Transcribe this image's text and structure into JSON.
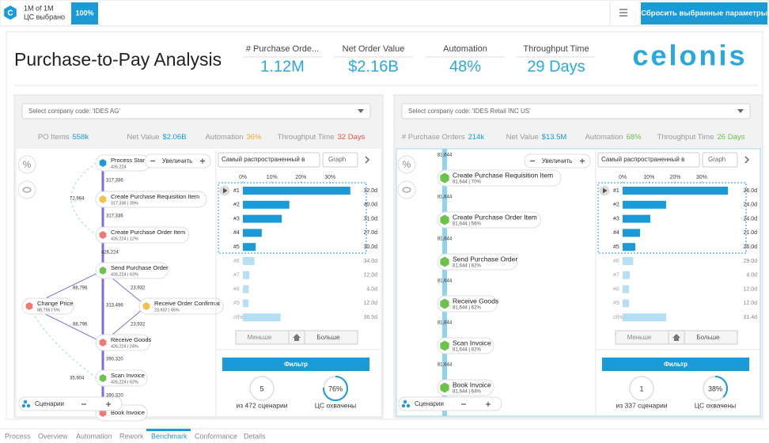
{
  "topbar": {
    "count": "1M of 1M",
    "selected": "ЦС выбрано",
    "percent": "100%",
    "reset": "Сбросить выбранные параметры"
  },
  "header": {
    "title": "Purchase-to-Pay Analysis",
    "logo": "celonis",
    "kpis": [
      {
        "label": "# Purchase Orde...",
        "value": "1.12M"
      },
      {
        "label": "Net Order Value",
        "value": "$2.16B"
      },
      {
        "label": "Automation",
        "value": "48%"
      },
      {
        "label": "Throughput Time",
        "value": "29 Days"
      }
    ]
  },
  "panels": [
    {
      "company_select": "Select company code: 'IDES AG'",
      "stats": [
        {
          "label": "PO Items",
          "value": "558k",
          "color": "#1a9bd7"
        },
        {
          "label": "Net Value",
          "value": "$2.06B",
          "color": "#1a9bd7"
        },
        {
          "label": "Automation",
          "value": "36%",
          "color": "#f0a830"
        },
        {
          "label": "Throughput Time",
          "value": "32 Days",
          "color": "#e8574a"
        }
      ],
      "zoom": "Увеличить",
      "scenarios": "Сценарии",
      "graph": {
        "nodes": [
          {
            "label": "Process Start",
            "sub": "426,224",
            "color": "#1a9bd7"
          },
          {
            "label": "Create Purchase Requisition Item",
            "sub": "317,336 | 39%",
            "color": "#f5c04a"
          },
          {
            "label": "Create Purchase Order Item",
            "sub": "426,224 | 12%",
            "color": "#f07a73"
          },
          {
            "label": "Send Purchase Order",
            "sub": "426,224 | 63%",
            "color": "#6cc24a"
          },
          {
            "label": "Change Price",
            "sub": "88,796 | 5%",
            "color": "#f07a73"
          },
          {
            "label": "Receive Order Confirmat",
            "sub": "23,932 | 45%",
            "color": "#f5c04a"
          },
          {
            "label": "Receive Goods",
            "sub": "426,224 | 24%",
            "color": "#f07a73"
          },
          {
            "label": "Scan Invoice",
            "sub": "426,224 | 62%",
            "color": "#6cc24a"
          },
          {
            "label": "Book Invoice",
            "color": "#f07a73"
          }
        ],
        "edges": [
          "317,336",
          "72,984",
          "317,336",
          "426,224",
          "88,796",
          "23,932",
          "313,496",
          "88,796",
          "23,932",
          "390,320",
          "35,904",
          "390,320"
        ]
      },
      "variants": {
        "sort": "Самый распространенный в",
        "view": "Graph",
        "xticks": [
          {
            "value": 0,
            "label": "0%"
          },
          {
            "value": 10,
            "label": "10%"
          },
          {
            "value": 20,
            "label": "20%"
          },
          {
            "value": 30,
            "label": "30%"
          }
        ],
        "rows": [
          {
            "label": "#1",
            "share": 37,
            "duration": "32.0d"
          },
          {
            "label": "#2",
            "share": 16,
            "duration": "40.0d"
          },
          {
            "label": "#3",
            "share": 13.4,
            "duration": "31.0d"
          },
          {
            "label": "#4",
            "share": 6.5,
            "duration": "27.0d"
          },
          {
            "label": "#5",
            "share": 4.4,
            "duration": "30.0d"
          },
          {
            "label": "#6",
            "share": 4,
            "duration": "34.0d"
          },
          {
            "label": "#7",
            "share": 2.2,
            "duration": "12.0d"
          },
          {
            "label": "#8",
            "share": 2,
            "duration": "4.0d"
          },
          {
            "label": "#9",
            "share": 2,
            "duration": "12.0d"
          },
          {
            "label": "others",
            "share": 13,
            "duration": "36.5d"
          }
        ]
      },
      "less": "Меньше",
      "more": "Больше",
      "filter": "Фильтр",
      "variant_count": "5",
      "variant_text": "из 472 сценарии",
      "coverage": {
        "value": 76,
        "label": "76%"
      },
      "coverage_text": "ЦС охвачены"
    },
    {
      "company_select": "Select company code: 'IDES Retail INC US'",
      "stats": [
        {
          "label": "# Purchase Orders",
          "value": "214k",
          "color": "#1a9bd7"
        },
        {
          "label": "Net Value",
          "value": "$13.5M",
          "color": "#1a9bd7"
        },
        {
          "label": "Automation",
          "value": "68%",
          "color": "#6cc24a"
        },
        {
          "label": "Throughput Time",
          "value": "26 Days",
          "color": "#6cc24a"
        }
      ],
      "zoom": "Увеличить",
      "scenarios": "Сценарии",
      "graph": {
        "nodes": [
          {
            "label": "Create Purchase Requisition Item",
            "sub": "81,644 | 70%",
            "color": "#6cc24a"
          },
          {
            "label": "Create Purchase Order Item",
            "sub": "81,644 | 56%",
            "color": "#6cc24a"
          },
          {
            "label": "Send Purchase Order",
            "sub": "81,644 | 82%",
            "color": "#6cc24a"
          },
          {
            "label": "Receive Goods",
            "sub": "81,644 | 62%",
            "color": "#6cc24a"
          },
          {
            "label": "Scan Invoice",
            "sub": "81,644 | 82%",
            "color": "#6cc24a"
          },
          {
            "label": "Book Invoice",
            "sub": "81,644 | 64%",
            "color": "#6cc24a"
          }
        ],
        "edges": [
          "81,644",
          "81,644",
          "81,644",
          "81,644",
          "81,644",
          "81,644",
          "81,644"
        ]
      },
      "variants": {
        "sort": "Самый распространенный в",
        "view": "Graph",
        "xticks": [
          {
            "value": 0,
            "label": "0%"
          },
          {
            "value": 10,
            "label": "10%"
          },
          {
            "value": 20,
            "label": "20%"
          },
          {
            "value": 30,
            "label": "30%"
          }
        ],
        "rows": [
          {
            "label": "#1",
            "share": 40,
            "duration": "26.0d"
          },
          {
            "label": "#2",
            "share": 16.5,
            "duration": "24.0d"
          },
          {
            "label": "#3",
            "share": 10.5,
            "duration": "24.0d"
          },
          {
            "label": "#4",
            "share": 6.6,
            "duration": "21.0d"
          },
          {
            "label": "#5",
            "share": 4.8,
            "duration": "26.0d"
          },
          {
            "label": "#6",
            "share": 4,
            "duration": "29.0d"
          },
          {
            "label": "#7",
            "share": 2.7,
            "duration": "4.0d"
          },
          {
            "label": "#8",
            "share": 2.4,
            "duration": "12.0d"
          },
          {
            "label": "#9",
            "share": 2.4,
            "duration": "12.0d"
          },
          {
            "label": "others",
            "share": 16.5,
            "duration": "31.4d"
          }
        ]
      },
      "less": "Меньше",
      "more": "Больше",
      "filter": "Фильтр",
      "variant_count": "1",
      "variant_text": "из 337 сценарии",
      "coverage": {
        "value": 38,
        "label": "38%"
      },
      "coverage_text": "ЦС охвачены"
    }
  ],
  "tabs": [
    "Process",
    "Overview",
    "Automation",
    "Rework",
    "Benchmark",
    "Conformance",
    "Details"
  ],
  "active_tab": 4
}
